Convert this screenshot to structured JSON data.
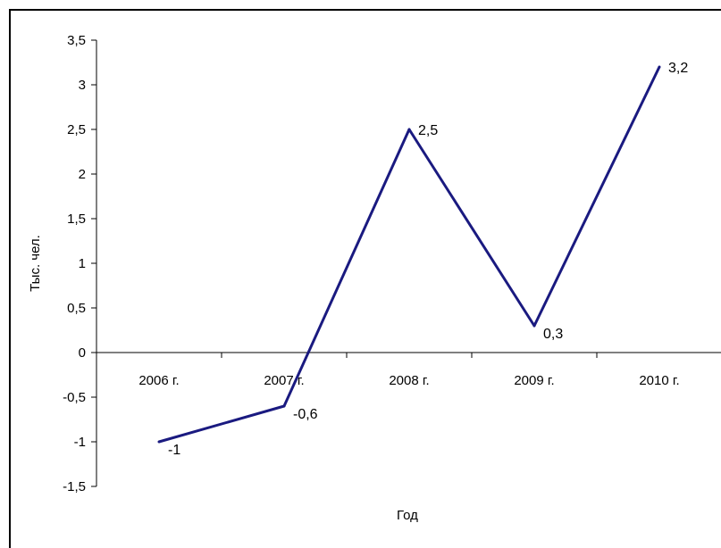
{
  "chart_data": {
    "type": "line",
    "categories": [
      "2006 г.",
      "2007 г.",
      "2008 г.",
      "2009 г.",
      "2010 г."
    ],
    "values": [
      -1,
      -0.6,
      2.5,
      0.3,
      3.2
    ],
    "data_labels": [
      "-1",
      "-0,6",
      "2,5",
      "0,3",
      "3,2"
    ],
    "xlabel": "Год",
    "ylabel": "Тыс. чел.",
    "ylim": [
      -1.5,
      3.5
    ],
    "yticks": [
      3.5,
      3,
      2.5,
      2,
      1.5,
      1,
      0.5,
      0,
      -0.5,
      -1,
      -1.5
    ],
    "ytick_labels": [
      "3,5",
      "3",
      "2,5",
      "2",
      "1,5",
      "1",
      "0,5",
      "0",
      "-0,5",
      "-1",
      "-1,5"
    ],
    "grid": false,
    "legend": false,
    "line_color": "#1a1a80"
  }
}
